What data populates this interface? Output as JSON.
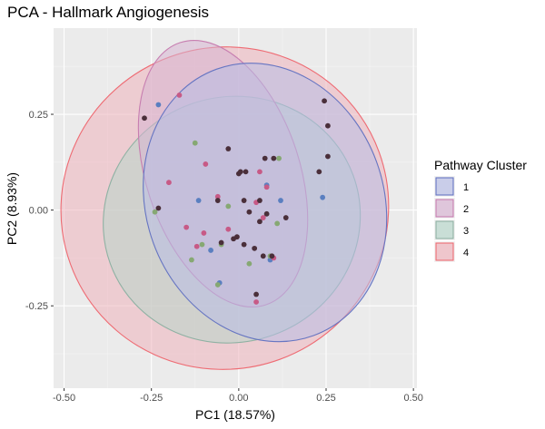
{
  "chart_data": {
    "type": "scatter",
    "title": "PCA - Hallmark Angiogenesis",
    "xlabel": "PC1 (18.57%)",
    "ylabel": "PC2 (8.93%)",
    "xlim": [
      -0.53,
      0.51
    ],
    "ylim": [
      -0.465,
      0.475
    ],
    "xticks": [
      -0.5,
      -0.25,
      0,
      0.25,
      0.5
    ],
    "xtick_labels": [
      "-0.50",
      "-0.25",
      "0.00",
      "0.25",
      "0.50"
    ],
    "yticks": [
      -0.25,
      0,
      0.25
    ],
    "ytick_labels": [
      "-0.25",
      "0.00",
      "0.25"
    ],
    "grid": true,
    "background": "#ebebeb",
    "legend": {
      "title": "Pathway Cluster",
      "position": "right"
    },
    "series": [
      {
        "name": "1",
        "point_color": "#5a7fc0",
        "ellipse_stroke": "#6675c2",
        "ellipse_fill": "#b8bde6",
        "ellipse": {
          "cx": 0.075,
          "cy": 0.02,
          "rx": 0.34,
          "ry": 0.37,
          "angle": -20
        },
        "points": [
          [
            -0.23,
            0.275
          ],
          [
            -0.115,
            0.025
          ],
          [
            -0.08,
            -0.105
          ],
          [
            0.08,
            0.065
          ],
          [
            0.12,
            0.025
          ],
          [
            0.24,
            0.033
          ],
          [
            -0.055,
            -0.19
          ],
          [
            0.09,
            -0.13
          ]
        ]
      },
      {
        "name": "2",
        "point_color": "#c75a86",
        "ellipse_stroke": "#c77eb0",
        "ellipse_fill": "#d7b4d1",
        "ellipse": {
          "cx": -0.045,
          "cy": 0.095,
          "rx": 0.22,
          "ry": 0.36,
          "angle": -18
        },
        "points": [
          [
            -0.17,
            0.3
          ],
          [
            -0.2,
            0.072
          ],
          [
            -0.15,
            -0.045
          ],
          [
            -0.1,
            -0.06
          ],
          [
            -0.095,
            0.12
          ],
          [
            -0.06,
            0.035
          ],
          [
            0.06,
            0.1
          ],
          [
            0.08,
            0.06
          ],
          [
            0.05,
            0.02
          ],
          [
            0.07,
            -0.02
          ],
          [
            -0.12,
            -0.095
          ],
          [
            0.1,
            -0.125
          ],
          [
            0.05,
            -0.24
          ],
          [
            -0.03,
            -0.05
          ]
        ]
      },
      {
        "name": "3",
        "point_color": "#86a873",
        "ellipse_stroke": "#8fb1a3",
        "ellipse_fill": "#b8d6cb",
        "ellipse": {
          "cx": -0.02,
          "cy": -0.025,
          "rx": 0.37,
          "ry": 0.32,
          "angle": -20
        },
        "points": [
          [
            -0.125,
            0.175
          ],
          [
            0.115,
            0.135
          ],
          [
            -0.24,
            -0.005
          ],
          [
            -0.03,
            0.01
          ],
          [
            -0.135,
            -0.13
          ],
          [
            0.03,
            -0.14
          ],
          [
            -0.05,
            -0.09
          ],
          [
            0.09,
            -0.12
          ],
          [
            -0.105,
            -0.09
          ],
          [
            0.11,
            -0.035
          ],
          [
            -0.06,
            -0.195
          ]
        ]
      },
      {
        "name": "4",
        "point_color": "#4a2f3a",
        "ellipse_stroke": "#ee6b73",
        "ellipse_fill": "#eeb3bc",
        "ellipse": {
          "cx": -0.04,
          "cy": 0.005,
          "rx": 0.47,
          "ry": 0.42,
          "angle": -20
        },
        "points": [
          [
            -0.27,
            0.24
          ],
          [
            0.245,
            0.285
          ],
          [
            0.255,
            0.22
          ],
          [
            0.255,
            0.14
          ],
          [
            -0.23,
            0.005
          ],
          [
            -0.03,
            0.16
          ],
          [
            0,
            0.095
          ],
          [
            0.005,
            0.1
          ],
          [
            0.02,
            0.1
          ],
          [
            0.075,
            0.135
          ],
          [
            0.1,
            0.135
          ],
          [
            0.23,
            0.1
          ],
          [
            -0.06,
            0.025
          ],
          [
            0.015,
            0.025
          ],
          [
            0.06,
            0.025
          ],
          [
            0.03,
            -0.005
          ],
          [
            0.08,
            -0.01
          ],
          [
            0.06,
            -0.03
          ],
          [
            0.135,
            -0.02
          ],
          [
            -0.015,
            -0.075
          ],
          [
            -0.05,
            -0.085
          ],
          [
            -0.005,
            -0.07
          ],
          [
            0.015,
            -0.09
          ],
          [
            0.045,
            -0.1
          ],
          [
            0.07,
            -0.12
          ],
          [
            0.095,
            -0.12
          ],
          [
            0.05,
            -0.22
          ]
        ]
      }
    ]
  }
}
